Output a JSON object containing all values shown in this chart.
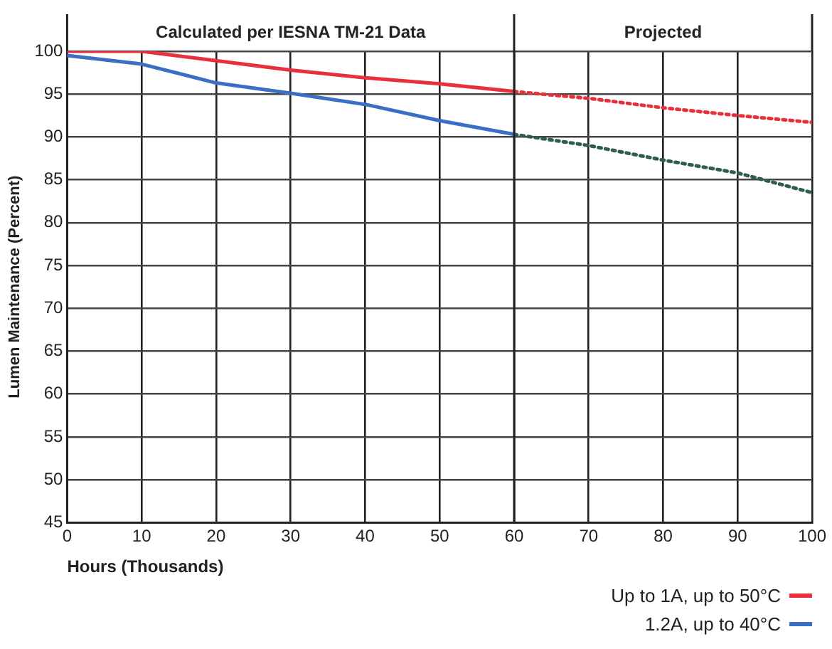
{
  "chart_data": {
    "type": "line",
    "xlabel": "Hours (Thousands)",
    "ylabel": "Lumen Maintenance (Percent)",
    "x": [
      0,
      10,
      20,
      30,
      40,
      50,
      60
    ],
    "series": [
      {
        "name": "Up to 1A, up to  50°C",
        "color": "#e8303a",
        "values": [
          100,
          100,
          98.9,
          97.8,
          96.9,
          96.2,
          95.3
        ]
      },
      {
        "color": "#e8303a",
        "line_style": "dotted",
        "x": [
          60,
          70,
          80,
          90,
          100
        ],
        "values": [
          95.3,
          94.5,
          93.4,
          92.5,
          91.7
        ]
      },
      {
        "name": "1.2A, up to  40°C",
        "color": "#3b6fc4",
        "values": [
          99.5,
          98.5,
          96.3,
          95.1,
          93.8,
          91.9,
          90.3
        ]
      },
      {
        "color": "#2f5f4a",
        "line_style": "dotted",
        "x": [
          60,
          70,
          80,
          90,
          100
        ],
        "values": [
          90.3,
          89,
          87.3,
          85.8,
          83.5
        ]
      }
    ],
    "xlim": [
      0,
      100
    ],
    "xticks": [
      0,
      10,
      20,
      30,
      40,
      50,
      60,
      70,
      80,
      90,
      100
    ],
    "ylim": [
      45,
      100
    ],
    "yticks": [
      45,
      50,
      55,
      60,
      65,
      70,
      75,
      80,
      85,
      90,
      95,
      100
    ],
    "ref_lines": [
      {
        "axis": "x",
        "value": 60
      }
    ],
    "annotations": [
      "Calculated per IESNA TM-21 Data",
      "Projected"
    ],
    "grid": true,
    "legend": "bottom right",
    "marker": "none",
    "line_style": "solid"
  }
}
